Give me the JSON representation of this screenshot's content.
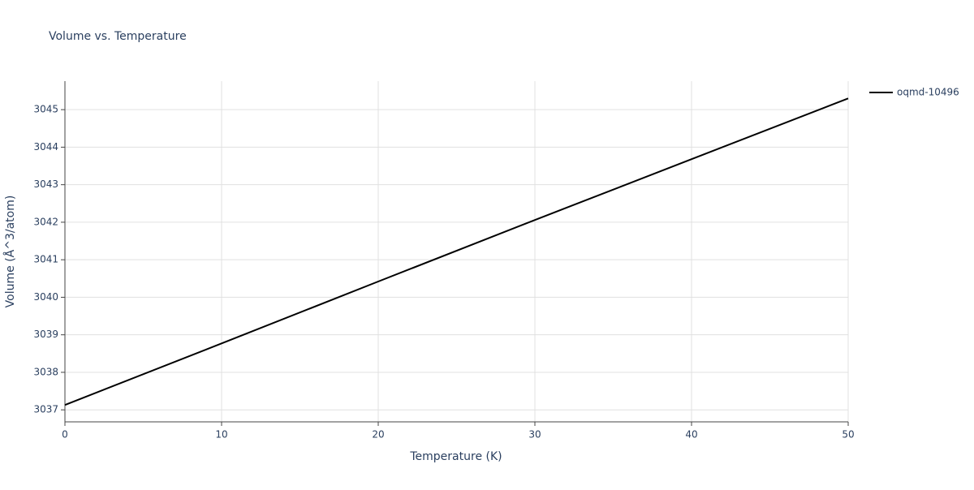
{
  "chart_data": {
    "type": "line",
    "title": "Volume vs. Temperature",
    "x_label": "Temperature (K)",
    "y_label": "Volume (Å^3/atom)",
    "x": [
      0,
      10,
      20,
      30,
      40,
      50
    ],
    "series": [
      {
        "name": "oqmd-10496",
        "color": "#000000",
        "values": [
          3037.13,
          3038.77,
          3040.42,
          3042.06,
          3043.68,
          3045.3
        ]
      }
    ],
    "xlim": [
      0,
      50
    ],
    "xticks": [
      0,
      10,
      20,
      30,
      40,
      50
    ],
    "ylim": [
      3036.68,
      3045.76
    ],
    "yticks": [
      3037,
      3038,
      3039,
      3040,
      3041,
      3042,
      3043,
      3044,
      3045
    ],
    "grid": true,
    "legend": "right"
  }
}
